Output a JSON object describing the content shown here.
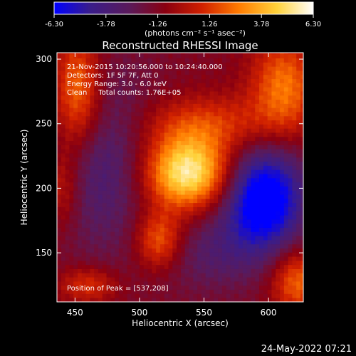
{
  "colorbar": {
    "ticks": [
      "-6.30",
      "-3.78",
      "-1.26",
      "1.26",
      "3.78",
      "6.30"
    ],
    "tick_values": [
      -6.3,
      -3.78,
      -1.26,
      1.26,
      3.78,
      6.3
    ],
    "range": [
      -6.3,
      6.3
    ],
    "unit_label": "(photons cm⁻² s⁻¹ asec⁻²)",
    "colors": [
      "#0000ff",
      "#3a1d8a",
      "#5a1a5a",
      "#8a0010",
      "#d02000",
      "#ff7a00",
      "#ffd23a",
      "#ffffff"
    ]
  },
  "chart_data": {
    "type": "heatmap",
    "title": "Reconstructed RHESSI Image",
    "xlabel": "Heliocentric X (arcsec)",
    "ylabel": "Heliocentric Y (arcsec)",
    "xlim": [
      436,
      627
    ],
    "ylim": [
      112,
      305
    ],
    "xticks": [
      450,
      500,
      550,
      600
    ],
    "yticks": [
      150,
      200,
      250,
      300
    ],
    "info_lines": [
      "21-Nov-2015 10:20:56.000 to 10:24:40.000",
      "Detectors: 1F 5F 7F, Att 0",
      "Energy Range: 3.0 - 6.0 keV",
      "Clean     Total counts: 1.76E+05"
    ],
    "peak_label": "Position of Peak = [537,208]",
    "peak": [
      537,
      208
    ],
    "sources": [
      {
        "x": 537,
        "y": 212,
        "sx": 24,
        "sy": 20,
        "amp": 7.0
      },
      {
        "x": 552,
        "y": 250,
        "sx": 40,
        "sy": 16,
        "amp": 2.6
      },
      {
        "x": 515,
        "y": 160,
        "sx": 13,
        "sy": 16,
        "amp": 3.8
      },
      {
        "x": 452,
        "y": 275,
        "sx": 13,
        "sy": 32,
        "amp": 4.3
      },
      {
        "x": 440,
        "y": 200,
        "sx": 10,
        "sy": 22,
        "amp": 2.2
      },
      {
        "x": 612,
        "y": 280,
        "sx": 18,
        "sy": 26,
        "amp": 3.8
      },
      {
        "x": 622,
        "y": 128,
        "sx": 14,
        "sy": 18,
        "amp": 3.6
      },
      {
        "x": 460,
        "y": 125,
        "sx": 16,
        "sy": 10,
        "amp": 2.6
      },
      {
        "x": 596,
        "y": 192,
        "sx": 22,
        "sy": 28,
        "amp": -6.3
      },
      {
        "x": 472,
        "y": 222,
        "sx": 30,
        "sy": 50,
        "amp": -2.4
      },
      {
        "x": 555,
        "y": 150,
        "sx": 30,
        "sy": 22,
        "amp": -1.6
      }
    ],
    "background": -1.3
  },
  "timestamp": "24-May-2022 07:21"
}
